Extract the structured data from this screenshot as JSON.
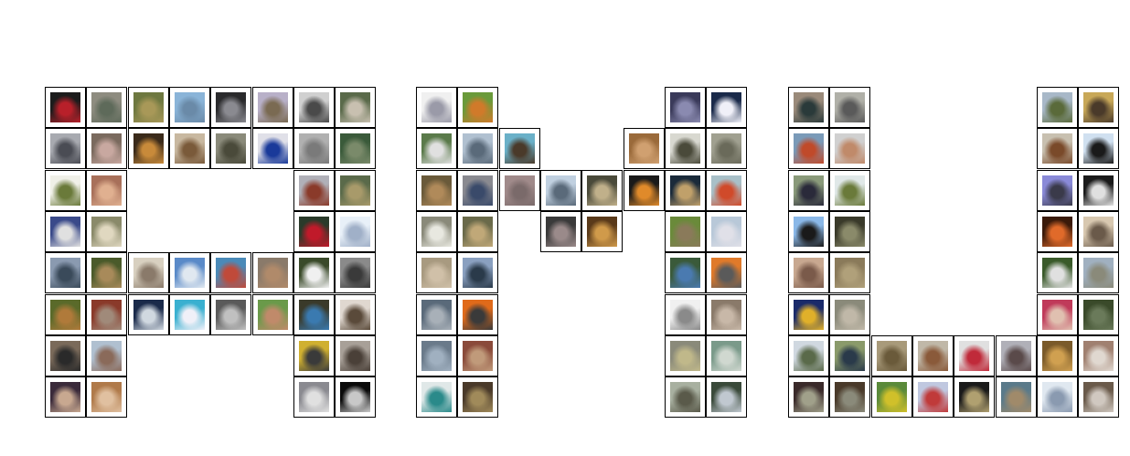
{
  "colors": {
    "background": "#ffffff",
    "cell_border": "#000000"
  },
  "letters": [
    {
      "id": "A",
      "cells": [
        {
          "c": 0,
          "r": 0,
          "tone": [
            "#1c1c1c",
            "#b8202a"
          ]
        },
        {
          "c": 1,
          "r": 0,
          "tone": [
            "#8e8c80",
            "#5e6a5a"
          ]
        },
        {
          "c": 2,
          "r": 0,
          "tone": [
            "#6e7840",
            "#a89858"
          ]
        },
        {
          "c": 3,
          "r": 0,
          "tone": [
            "#8ab4d8",
            "#6a8aa8"
          ]
        },
        {
          "c": 4,
          "r": 0,
          "tone": [
            "#2a2a2c",
            "#8a8a90"
          ]
        },
        {
          "c": 5,
          "r": 0,
          "tone": [
            "#b8b0c8",
            "#7a6a52"
          ]
        },
        {
          "c": 6,
          "r": 0,
          "tone": [
            "#d0d0d0",
            "#4a4a4a"
          ]
        },
        {
          "c": 7,
          "r": 0,
          "tone": [
            "#5a6a4a",
            "#c8c0b0"
          ]
        },
        {
          "c": 0,
          "r": 1,
          "tone": [
            "#a8aab0",
            "#4a4c54"
          ]
        },
        {
          "c": 1,
          "r": 1,
          "tone": [
            "#7a6a5e",
            "#c8a8a0"
          ]
        },
        {
          "c": 2,
          "r": 1,
          "tone": [
            "#3a2a1a",
            "#c88a3a"
          ]
        },
        {
          "c": 3,
          "r": 1,
          "tone": [
            "#c8b8a0",
            "#7a5a3a"
          ]
        },
        {
          "c": 4,
          "r": 1,
          "tone": [
            "#8a8a7a",
            "#4a4a3a"
          ]
        },
        {
          "c": 5,
          "r": 1,
          "tone": [
            "#e0e0e8",
            "#1a3a9a"
          ]
        },
        {
          "c": 6,
          "r": 1,
          "tone": [
            "#b0b0b0",
            "#7a7a7a"
          ]
        },
        {
          "c": 7,
          "r": 1,
          "tone": [
            "#3a5a3a",
            "#7a8a6a"
          ]
        },
        {
          "c": 0,
          "r": 2,
          "tone": [
            "#f0f0e8",
            "#6a7a3a"
          ]
        },
        {
          "c": 1,
          "r": 2,
          "tone": [
            "#a8705a",
            "#e0b090"
          ]
        },
        {
          "c": 6,
          "r": 2,
          "tone": [
            "#b0b0b8",
            "#8a3a2a"
          ]
        },
        {
          "c": 7,
          "r": 2,
          "tone": [
            "#5a6a4a",
            "#a89a6a"
          ]
        },
        {
          "c": 0,
          "r": 3,
          "tone": [
            "#3a4a8a",
            "#e0e0e0"
          ]
        },
        {
          "c": 1,
          "r": 3,
          "tone": [
            "#8a8a6a",
            "#e0d8c0"
          ]
        },
        {
          "c": 6,
          "r": 3,
          "tone": [
            "#2a3a2a",
            "#c01a2a"
          ]
        },
        {
          "c": 7,
          "r": 3,
          "tone": [
            "#e8f0f8",
            "#a0b0c8"
          ]
        },
        {
          "c": 0,
          "r": 4,
          "tone": [
            "#8a9ab0",
            "#3a4a5a"
          ]
        },
        {
          "c": 1,
          "r": 4,
          "tone": [
            "#4a5a2a",
            "#a88a5a"
          ]
        },
        {
          "c": 2,
          "r": 4,
          "tone": [
            "#d8d0c0",
            "#8a7a6a"
          ]
        },
        {
          "c": 3,
          "r": 4,
          "tone": [
            "#5a8ac8",
            "#e0e8f0"
          ]
        },
        {
          "c": 4,
          "r": 4,
          "tone": [
            "#4a8ab8",
            "#c04a3a"
          ]
        },
        {
          "c": 5,
          "r": 4,
          "tone": [
            "#8a7a6a",
            "#b08a6a"
          ]
        },
        {
          "c": 6,
          "r": 4,
          "tone": [
            "#3a4a2a",
            "#f0f0f0"
          ]
        },
        {
          "c": 7,
          "r": 4,
          "tone": [
            "#8a8a8a",
            "#3a3a3a"
          ]
        },
        {
          "c": 0,
          "r": 5,
          "tone": [
            "#5a6a2a",
            "#b07a3a"
          ]
        },
        {
          "c": 1,
          "r": 5,
          "tone": [
            "#8a3a2a",
            "#a08a7a"
          ]
        },
        {
          "c": 2,
          "r": 5,
          "tone": [
            "#1a2a4a",
            "#d0d8e0"
          ]
        },
        {
          "c": 3,
          "r": 5,
          "tone": [
            "#3ab0d0",
            "#f0f0f8"
          ]
        },
        {
          "c": 4,
          "r": 5,
          "tone": [
            "#5a5a5a",
            "#c0c0c0"
          ]
        },
        {
          "c": 5,
          "r": 5,
          "tone": [
            "#6a9a4a",
            "#c08a6a"
          ]
        },
        {
          "c": 6,
          "r": 5,
          "tone": [
            "#3a3a2a",
            "#3a7ab0"
          ]
        },
        {
          "c": 7,
          "r": 5,
          "tone": [
            "#e0d8d0",
            "#5a4a3a"
          ]
        },
        {
          "c": 0,
          "r": 6,
          "tone": [
            "#7a6a5a",
            "#2a2a2a"
          ]
        },
        {
          "c": 1,
          "r": 6,
          "tone": [
            "#b0c0d0",
            "#8a6a5a"
          ]
        },
        {
          "c": 6,
          "r": 6,
          "tone": [
            "#d0b030",
            "#3a3a3a"
          ]
        },
        {
          "c": 7,
          "r": 6,
          "tone": [
            "#a8a098",
            "#4a4038"
          ]
        },
        {
          "c": 0,
          "r": 7,
          "tone": [
            "#3a2a3a",
            "#c8a890"
          ]
        },
        {
          "c": 1,
          "r": 7,
          "tone": [
            "#b07a4a",
            "#e0c0a0"
          ]
        },
        {
          "c": 6,
          "r": 7,
          "tone": [
            "#8a8a90",
            "#e0e0e0"
          ]
        },
        {
          "c": 7,
          "r": 7,
          "tone": [
            "#0a0a0a",
            "#c8c8c8"
          ]
        }
      ]
    },
    {
      "id": "M",
      "cells": [
        {
          "c": 0,
          "r": 0,
          "tone": [
            "#f0f0f0",
            "#9a9aa8"
          ]
        },
        {
          "c": 1,
          "r": 0,
          "tone": [
            "#6a9a3a",
            "#d07a2a"
          ]
        },
        {
          "c": 6,
          "r": 0,
          "tone": [
            "#3a3a5a",
            "#8a8ab0"
          ]
        },
        {
          "c": 7,
          "r": 0,
          "tone": [
            "#1a2a4a",
            "#f0f0f8"
          ]
        },
        {
          "c": 0,
          "r": 1,
          "tone": [
            "#5a7a4a",
            "#e0e0e0"
          ]
        },
        {
          "c": 1,
          "r": 1,
          "tone": [
            "#b0c0d0",
            "#5a6a7a"
          ]
        },
        {
          "c": 2,
          "r": 1,
          "tone": [
            "#6ab0c8",
            "#4a3a2a"
          ]
        },
        {
          "c": 5,
          "r": 1,
          "tone": [
            "#9a6a3a",
            "#d0a070"
          ]
        },
        {
          "c": 6,
          "r": 1,
          "tone": [
            "#d8d8d0",
            "#4a4a3a"
          ]
        },
        {
          "c": 7,
          "r": 1,
          "tone": [
            "#a0a090",
            "#6a6a5a"
          ]
        },
        {
          "c": 0,
          "r": 2,
          "tone": [
            "#6a5a3a",
            "#b08a5a"
          ]
        },
        {
          "c": 1,
          "r": 2,
          "tone": [
            "#8a8a90",
            "#3a4a6a"
          ]
        },
        {
          "c": 2,
          "r": 2,
          "tone": [
            "#a08a8a",
            "#7a6a6a"
          ]
        },
        {
          "c": 3,
          "r": 2,
          "tone": [
            "#c0d0e0",
            "#5a6a7a"
          ]
        },
        {
          "c": 4,
          "r": 2,
          "tone": [
            "#4a4a3a",
            "#c0b08a"
          ]
        },
        {
          "c": 5,
          "r": 2,
          "tone": [
            "#1a1a1a",
            "#e08a2a"
          ]
        },
        {
          "c": 6,
          "r": 2,
          "tone": [
            "#1a2a3a",
            "#c0a06a"
          ]
        },
        {
          "c": 7,
          "r": 2,
          "tone": [
            "#a8c0c8",
            "#d04a2a"
          ]
        },
        {
          "c": 0,
          "r": 3,
          "tone": [
            "#8a8a7a",
            "#e8e8e0"
          ]
        },
        {
          "c": 1,
          "r": 3,
          "tone": [
            "#6a6a4a",
            "#c0a878"
          ]
        },
        {
          "c": 3,
          "r": 3,
          "tone": [
            "#3a3a3a",
            "#9a8a8a"
          ]
        },
        {
          "c": 4,
          "r": 3,
          "tone": [
            "#5a3a1a",
            "#d09a4a"
          ]
        },
        {
          "c": 6,
          "r": 3,
          "tone": [
            "#6a8a3a",
            "#8a7a5a"
          ]
        },
        {
          "c": 7,
          "r": 3,
          "tone": [
            "#b8c8d8",
            "#e0e0e8"
          ]
        },
        {
          "c": 0,
          "r": 4,
          "tone": [
            "#a89a80",
            "#d0c0a8"
          ]
        },
        {
          "c": 1,
          "r": 4,
          "tone": [
            "#8aa0c0",
            "#2a3a4a"
          ]
        },
        {
          "c": 6,
          "r": 4,
          "tone": [
            "#3a5a3a",
            "#4a7ab0"
          ]
        },
        {
          "c": 7,
          "r": 4,
          "tone": [
            "#e07a2a",
            "#5a5a5a"
          ]
        },
        {
          "c": 0,
          "r": 5,
          "tone": [
            "#5a6a7a",
            "#a8b0b8"
          ]
        },
        {
          "c": 1,
          "r": 5,
          "tone": [
            "#e06a1a",
            "#3a3a3a"
          ]
        },
        {
          "c": 6,
          "r": 5,
          "tone": [
            "#f0f0f0",
            "#8a8a8a"
          ]
        },
        {
          "c": 7,
          "r": 5,
          "tone": [
            "#8a7a6a",
            "#c8b8a8"
          ]
        },
        {
          "c": 0,
          "r": 6,
          "tone": [
            "#6a7a8a",
            "#a0b0c0"
          ]
        },
        {
          "c": 1,
          "r": 6,
          "tone": [
            "#8a4a3a",
            "#c09a7a"
          ]
        },
        {
          "c": 6,
          "r": 6,
          "tone": [
            "#8a8a7a",
            "#c0b88a"
          ]
        },
        {
          "c": 7,
          "r": 6,
          "tone": [
            "#7a9a8a",
            "#d0d8d0"
          ]
        },
        {
          "c": 0,
          "r": 7,
          "tone": [
            "#e0e8e8",
            "#2a8a8a"
          ]
        },
        {
          "c": 1,
          "r": 7,
          "tone": [
            "#4a3a2a",
            "#a08a5a"
          ]
        },
        {
          "c": 6,
          "r": 7,
          "tone": [
            "#a8b0a0",
            "#5a5a4a"
          ]
        },
        {
          "c": 7,
          "r": 7,
          "tone": [
            "#3a4a3a",
            "#c0c8d0"
          ]
        }
      ]
    },
    {
      "id": "U",
      "cells": [
        {
          "c": 0,
          "r": 0,
          "tone": [
            "#9a8a7a",
            "#2a3a3a"
          ]
        },
        {
          "c": 1,
          "r": 0,
          "tone": [
            "#b0b0a8",
            "#5a5a5a"
          ]
        },
        {
          "c": 6,
          "r": 0,
          "tone": [
            "#a8b8c8",
            "#5a6a3a"
          ]
        },
        {
          "c": 7,
          "r": 0,
          "tone": [
            "#c8a858",
            "#4a3a2a"
          ]
        },
        {
          "c": 0,
          "r": 1,
          "tone": [
            "#7a9ab8",
            "#c04a2a"
          ]
        },
        {
          "c": 1,
          "r": 1,
          "tone": [
            "#d0d0d0",
            "#c08a6a"
          ]
        },
        {
          "c": 6,
          "r": 1,
          "tone": [
            "#c8c0b0",
            "#7a4a2a"
          ]
        },
        {
          "c": 7,
          "r": 1,
          "tone": [
            "#d0e0f0",
            "#1a1a1a"
          ]
        },
        {
          "c": 0,
          "r": 2,
          "tone": [
            "#8a9a7a",
            "#2a2a3a"
          ]
        },
        {
          "c": 1,
          "r": 2,
          "tone": [
            "#e0e8e8",
            "#6a7a3a"
          ]
        },
        {
          "c": 6,
          "r": 2,
          "tone": [
            "#8a8ad8",
            "#3a3a4a"
          ]
        },
        {
          "c": 7,
          "r": 2,
          "tone": [
            "#1a1a1a",
            "#e0e0e0"
          ]
        },
        {
          "c": 0,
          "r": 3,
          "tone": [
            "#8ab8e8",
            "#1a1a1a"
          ]
        },
        {
          "c": 1,
          "r": 3,
          "tone": [
            "#3a3a2a",
            "#8a8a6a"
          ]
        },
        {
          "c": 6,
          "r": 3,
          "tone": [
            "#3a1a0a",
            "#e06a2a"
          ]
        },
        {
          "c": 7,
          "r": 3,
          "tone": [
            "#d8c8b0",
            "#6a5a4a"
          ]
        },
        {
          "c": 0,
          "r": 4,
          "tone": [
            "#c8a890",
            "#7a5a4a"
          ]
        },
        {
          "c": 1,
          "r": 4,
          "tone": [
            "#8a7a5a",
            "#b0a07a"
          ]
        },
        {
          "c": 6,
          "r": 4,
          "tone": [
            "#3a5a2a",
            "#e0e0e0"
          ]
        },
        {
          "c": 7,
          "r": 4,
          "tone": [
            "#a0b0c0",
            "#8a8a7a"
          ]
        },
        {
          "c": 0,
          "r": 5,
          "tone": [
            "#1a2a6a",
            "#e0b02a"
          ]
        },
        {
          "c": 1,
          "r": 5,
          "tone": [
            "#8a8a7a",
            "#c0b8a8"
          ]
        },
        {
          "c": 6,
          "r": 5,
          "tone": [
            "#c03a5a",
            "#e0c0b0"
          ]
        },
        {
          "c": 7,
          "r": 5,
          "tone": [
            "#3a4a2a",
            "#6a7a5a"
          ]
        },
        {
          "c": 0,
          "r": 6,
          "tone": [
            "#d0d8e0",
            "#5a6a4a"
          ]
        },
        {
          "c": 1,
          "r": 6,
          "tone": [
            "#8a9a6a",
            "#2a3a4a"
          ]
        },
        {
          "c": 2,
          "r": 6,
          "tone": [
            "#a89a7a",
            "#6a5a3a"
          ]
        },
        {
          "c": 3,
          "r": 6,
          "tone": [
            "#c0b8a8",
            "#8a5a3a"
          ]
        },
        {
          "c": 4,
          "r": 6,
          "tone": [
            "#e0e0e0",
            "#c02a3a"
          ]
        },
        {
          "c": 5,
          "r": 6,
          "tone": [
            "#b0b0b8",
            "#5a4a4a"
          ]
        },
        {
          "c": 6,
          "r": 6,
          "tone": [
            "#7a5a2a",
            "#d0a050"
          ]
        },
        {
          "c": 7,
          "r": 6,
          "tone": [
            "#a08070",
            "#e0d8d0"
          ]
        },
        {
          "c": 0,
          "r": 7,
          "tone": [
            "#3a2a2a",
            "#a0a08a"
          ]
        },
        {
          "c": 1,
          "r": 7,
          "tone": [
            "#4a3a2a",
            "#8a8a7a"
          ]
        },
        {
          "c": 2,
          "r": 7,
          "tone": [
            "#5a8a3a",
            "#d0c02a"
          ]
        },
        {
          "c": 3,
          "r": 7,
          "tone": [
            "#c0c8e0",
            "#c03a3a"
          ]
        },
        {
          "c": 4,
          "r": 7,
          "tone": [
            "#1a1a1a",
            "#b0a070"
          ]
        },
        {
          "c": 5,
          "r": 7,
          "tone": [
            "#5a7a8a",
            "#a08a6a"
          ]
        },
        {
          "c": 6,
          "r": 7,
          "tone": [
            "#e0e8f0",
            "#8a9ab0"
          ]
        },
        {
          "c": 7,
          "r": 7,
          "tone": [
            "#6a5a4a",
            "#d0c8c0"
          ]
        }
      ]
    }
  ]
}
